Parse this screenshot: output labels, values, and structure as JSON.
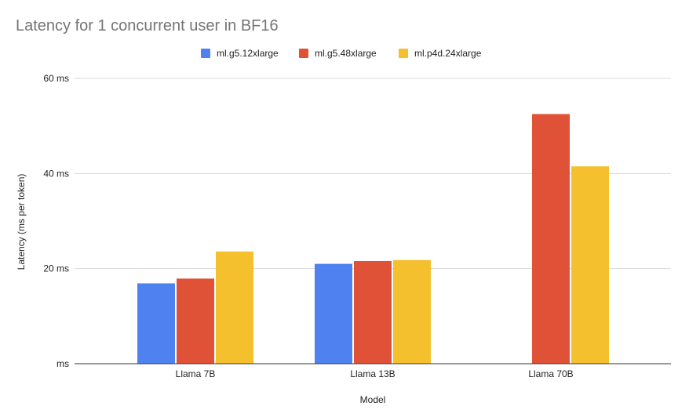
{
  "chart_data": {
    "type": "bar",
    "title": "Latency for 1 concurrent user in BF16",
    "xlabel": "Model",
    "ylabel": "Latency (ms per token)",
    "categories": [
      "Llama 7B",
      "Llama 13B",
      "Llama 70B"
    ],
    "series": [
      {
        "name": "ml.g5.12xlarge",
        "color": "#4f81f0",
        "values": [
          16.9,
          21.0,
          null
        ]
      },
      {
        "name": "ml.g5.48xlarge",
        "color": "#e05237",
        "values": [
          17.9,
          21.6,
          52.5
        ]
      },
      {
        "name": "ml.p4d.24xlarge",
        "color": "#f4c02e",
        "values": [
          23.6,
          21.8,
          41.5
        ]
      }
    ],
    "ylim": [
      0,
      60
    ],
    "yticks": [
      0,
      20,
      40,
      60
    ],
    "ytick_labels": [
      "ms",
      "20 ms",
      "40 ms",
      "60 ms"
    ],
    "grid": true,
    "legend_position": "top-center"
  }
}
